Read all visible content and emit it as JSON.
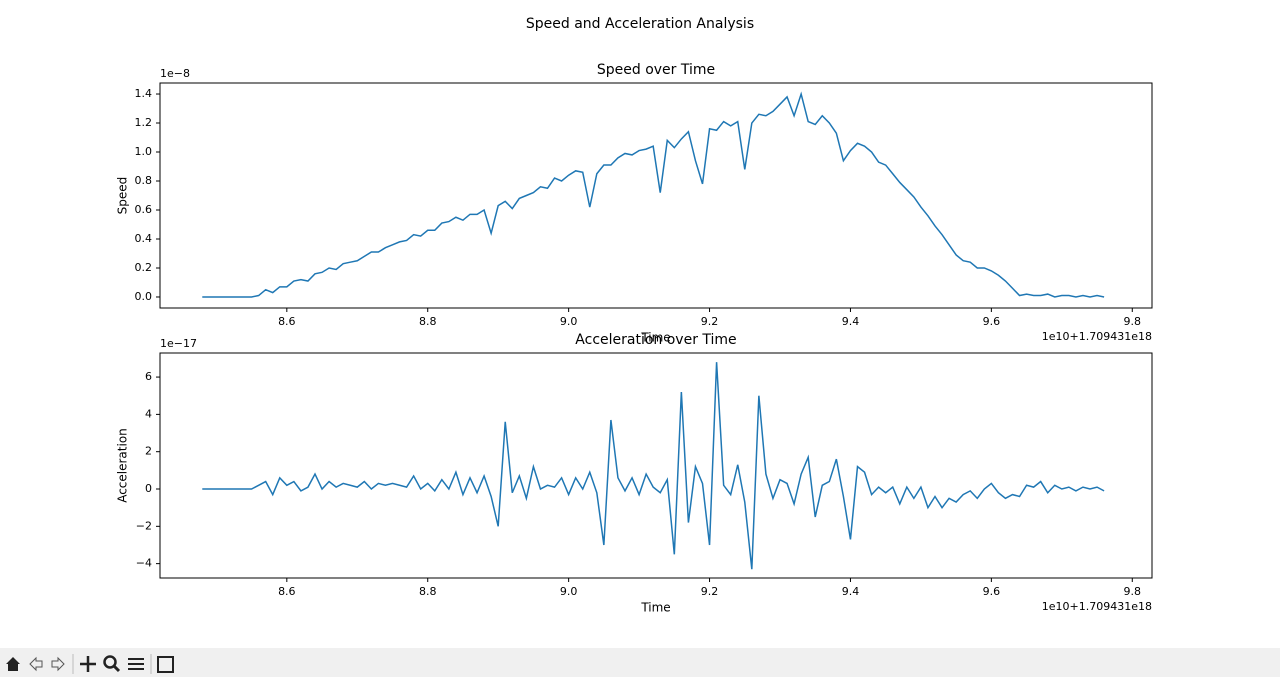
{
  "title": "Speed and Acceleration Analysis",
  "chart_data": [
    {
      "type": "line",
      "title": "Speed over Time",
      "xlabel": "Time",
      "ylabel": "Speed",
      "y_offset_text": "1e−8",
      "x_offset_text": "1e10+1.709431e18",
      "color": "#1f77b4",
      "xlim": [
        8.42,
        9.828
      ],
      "ylim": [
        -0.076,
        1.476
      ],
      "xticks": [
        8.6,
        8.8,
        {
          "value": 9,
          "label": "9.0"
        },
        9.2,
        9.4,
        9.6,
        9.8
      ],
      "yticks": [
        {
          "value": 0,
          "label": "0.0"
        },
        0.2,
        0.4,
        0.6,
        0.8,
        {
          "value": 1,
          "label": "1.0"
        },
        1.2,
        1.4
      ],
      "x": [
        8.48,
        8.49,
        8.5,
        8.51,
        8.52,
        8.53,
        8.54,
        8.55,
        8.56,
        8.57,
        8.58,
        8.59,
        8.6,
        8.61,
        8.62,
        8.63,
        8.64,
        8.65,
        8.66,
        8.67,
        8.68,
        8.69,
        8.7,
        8.71,
        8.72,
        8.73,
        8.74,
        8.75,
        8.76,
        8.77,
        8.78,
        8.79,
        8.8,
        8.81,
        8.82,
        8.83,
        8.84,
        8.85,
        8.86,
        8.87,
        8.88,
        8.89,
        8.9,
        8.91,
        8.92,
        8.93,
        8.94,
        8.95,
        8.96,
        8.97,
        8.98,
        8.99,
        9.0,
        9.01,
        9.02,
        9.03,
        9.04,
        9.05,
        9.06,
        9.07,
        9.08,
        9.09,
        9.1,
        9.11,
        9.12,
        9.13,
        9.14,
        9.15,
        9.16,
        9.17,
        9.18,
        9.19,
        9.2,
        9.21,
        9.22,
        9.23,
        9.24,
        9.25,
        9.26,
        9.27,
        9.28,
        9.29,
        9.3,
        9.31,
        9.32,
        9.33,
        9.34,
        9.35,
        9.36,
        9.37,
        9.38,
        9.39,
        9.4,
        9.41,
        9.42,
        9.43,
        9.44,
        9.45,
        9.46,
        9.47,
        9.48,
        9.49,
        9.5,
        9.51,
        9.52,
        9.53,
        9.54,
        9.55,
        9.56,
        9.57,
        9.58,
        9.59,
        9.6,
        9.61,
        9.62,
        9.63,
        9.64,
        9.65,
        9.66,
        9.67,
        9.68,
        9.69,
        9.7,
        9.71,
        9.72,
        9.73,
        9.74,
        9.75,
        9.76
      ],
      "values": [
        0,
        0,
        0,
        0,
        0,
        0,
        0,
        0,
        0.01,
        0.05,
        0.03,
        0.07,
        0.07,
        0.11,
        0.12,
        0.11,
        0.16,
        0.17,
        0.2,
        0.19,
        0.23,
        0.24,
        0.25,
        0.28,
        0.31,
        0.31,
        0.34,
        0.36,
        0.38,
        0.39,
        0.43,
        0.42,
        0.46,
        0.46,
        0.51,
        0.52,
        0.55,
        0.53,
        0.57,
        0.57,
        0.6,
        0.44,
        0.63,
        0.66,
        0.61,
        0.68,
        0.7,
        0.72,
        0.76,
        0.75,
        0.82,
        0.8,
        0.84,
        0.87,
        0.86,
        0.62,
        0.85,
        0.91,
        0.91,
        0.96,
        0.99,
        0.98,
        1.01,
        1.02,
        1.04,
        0.72,
        1.08,
        1.03,
        1.09,
        1.14,
        0.94,
        0.78,
        1.16,
        1.15,
        1.21,
        1.18,
        1.21,
        0.88,
        1.2,
        1.26,
        1.25,
        1.28,
        1.33,
        1.38,
        1.25,
        1.4,
        1.21,
        1.19,
        1.25,
        1.2,
        1.13,
        0.94,
        1.01,
        1.06,
        1.04,
        1.0,
        0.93,
        0.91,
        0.85,
        0.79,
        0.74,
        0.69,
        0.62,
        0.56,
        0.49,
        0.43,
        0.36,
        0.29,
        0.25,
        0.24,
        0.2,
        0.2,
        0.18,
        0.15,
        0.11,
        0.06,
        0.01,
        0.02,
        0.01,
        0.01,
        0.02,
        0,
        0.01,
        0.01,
        0,
        0.01,
        0,
        0.01,
        0
      ]
    },
    {
      "type": "line",
      "title": "Acceleration over Time",
      "xlabel": "Time",
      "ylabel": "Acceleration",
      "y_offset_text": "1e−17",
      "x_offset_text": "1e10+1.709431e18",
      "color": "#1f77b4",
      "xlim": [
        8.42,
        9.828
      ],
      "ylim": [
        -4.77,
        7.29
      ],
      "xticks": [
        8.6,
        8.8,
        {
          "value": 9,
          "label": "9.0"
        },
        9.2,
        9.4,
        9.6,
        9.8
      ],
      "yticks": [
        {
          "value": -4,
          "label": "−4"
        },
        {
          "value": -2,
          "label": "−2"
        },
        0,
        2,
        4,
        6
      ],
      "x": [
        8.48,
        8.49,
        8.5,
        8.51,
        8.52,
        8.53,
        8.54,
        8.55,
        8.56,
        8.57,
        8.58,
        8.59,
        8.6,
        8.61,
        8.62,
        8.63,
        8.64,
        8.65,
        8.66,
        8.67,
        8.68,
        8.69,
        8.7,
        8.71,
        8.72,
        8.73,
        8.74,
        8.75,
        8.76,
        8.77,
        8.78,
        8.79,
        8.8,
        8.81,
        8.82,
        8.83,
        8.84,
        8.85,
        8.86,
        8.87,
        8.88,
        8.89,
        8.9,
        8.91,
        8.92,
        8.93,
        8.94,
        8.95,
        8.96,
        8.97,
        8.98,
        8.99,
        9.0,
        9.01,
        9.02,
        9.03,
        9.04,
        9.05,
        9.06,
        9.07,
        9.08,
        9.09,
        9.1,
        9.11,
        9.12,
        9.13,
        9.14,
        9.15,
        9.16,
        9.17,
        9.18,
        9.19,
        9.2,
        9.21,
        9.22,
        9.23,
        9.24,
        9.25,
        9.26,
        9.27,
        9.28,
        9.29,
        9.3,
        9.31,
        9.32,
        9.33,
        9.34,
        9.35,
        9.36,
        9.37,
        9.38,
        9.39,
        9.4,
        9.41,
        9.42,
        9.43,
        9.44,
        9.45,
        9.46,
        9.47,
        9.48,
        9.49,
        9.5,
        9.51,
        9.52,
        9.53,
        9.54,
        9.55,
        9.56,
        9.57,
        9.58,
        9.59,
        9.6,
        9.61,
        9.62,
        9.63,
        9.64,
        9.65,
        9.66,
        9.67,
        9.68,
        9.69,
        9.7,
        9.71,
        9.72,
        9.73,
        9.74,
        9.75,
        9.76
      ],
      "values": [
        0,
        0,
        0,
        0,
        0,
        0,
        0,
        0,
        0.2,
        0.4,
        -0.3,
        0.6,
        0.2,
        0.4,
        -0.1,
        0.1,
        0.8,
        0,
        0.4,
        0.1,
        0.3,
        0.2,
        0.1,
        0.4,
        0,
        0.3,
        0.2,
        0.3,
        0.2,
        0.1,
        0.7,
        0,
        0.3,
        -0.1,
        0.5,
        0,
        0.9,
        -0.3,
        0.6,
        -0.2,
        0.7,
        -0.4,
        -2.0,
        3.6,
        -0.2,
        0.7,
        -0.5,
        1.2,
        0,
        0.2,
        0.1,
        0.6,
        -0.3,
        0.6,
        0,
        0.9,
        -0.2,
        -3.0,
        3.7,
        0.6,
        -0.1,
        0.6,
        -0.3,
        0.8,
        0.1,
        -0.2,
        0.5,
        -3.5,
        5.2,
        -1.8,
        1.2,
        0.3,
        -3.0,
        6.8,
        0.2,
        -0.3,
        1.3,
        -0.7,
        -4.3,
        5.0,
        0.8,
        -0.5,
        0.5,
        0.3,
        -0.8,
        0.8,
        1.7,
        -1.5,
        0.2,
        0.4,
        1.6,
        -0.4,
        -2.7,
        1.2,
        0.9,
        -0.3,
        0.1,
        -0.2,
        0.1,
        -0.8,
        0.1,
        -0.5,
        0.1,
        -1.0,
        -0.4,
        -1.0,
        -0.5,
        -0.7,
        -0.3,
        -0.1,
        -0.5,
        0,
        0.3,
        -0.2,
        -0.5,
        -0.3,
        -0.4,
        0.2,
        0.1,
        0.4,
        -0.2,
        0.2,
        0,
        0.1,
        -0.1,
        0.1,
        0,
        0.1,
        -0.1
      ]
    }
  ]
}
